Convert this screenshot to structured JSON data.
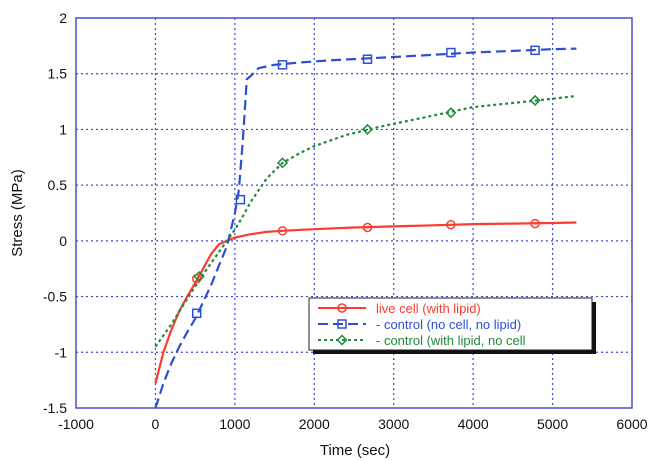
{
  "chart_data": {
    "type": "line",
    "title": "",
    "xlabel": "Time (sec)",
    "ylabel": "Stress (MPa)",
    "xlim": [
      -1000,
      6000
    ],
    "ylim": [
      -1.5,
      2
    ],
    "xticks": [
      -1000,
      0,
      1000,
      2000,
      3000,
      4000,
      5000,
      6000
    ],
    "yticks": [
      -1.5,
      -1,
      -0.5,
      0,
      0.5,
      1,
      1.5,
      2
    ],
    "xtick_labels": [
      "-1000",
      "0",
      "1000",
      "2000",
      "3000",
      "4000",
      "5000",
      "6000"
    ],
    "ytick_labels": [
      "-1.5",
      "-1",
      "-0.5",
      "0",
      "0.5",
      "1",
      "1.5",
      "2"
    ],
    "grid": true,
    "legend_position": "lower-right",
    "series": [
      {
        "name": "live cell (with lipid)",
        "color": "#ff3b30",
        "dash": "solid",
        "marker": "circle",
        "x": [
          0,
          100,
          200,
          300,
          400,
          500,
          600,
          700,
          800,
          900,
          1000,
          1200,
          1400,
          1600,
          2000,
          2500,
          3000,
          3500,
          4000,
          4500,
          5000,
          5300
        ],
        "y": [
          -1.28,
          -1.0,
          -0.8,
          -0.63,
          -0.5,
          -0.38,
          -0.25,
          -0.12,
          -0.03,
          0.0,
          0.03,
          0.06,
          0.08,
          0.09,
          0.105,
          0.12,
          0.13,
          0.14,
          0.15,
          0.155,
          0.16,
          0.165
        ],
        "marker_x": [
          520,
          1600,
          2670,
          3720,
          4780
        ],
        "marker_y": [
          -0.34,
          0.09,
          0.12,
          0.145,
          0.155
        ]
      },
      {
        "name": "control (no cell, no lipid)",
        "color": "#2b4fd6",
        "dash": "dashed",
        "marker": "square",
        "x": [
          0,
          100,
          200,
          300,
          400,
          500,
          600,
          700,
          800,
          900,
          1000,
          1050,
          1100,
          1150,
          1200,
          1300,
          1500,
          1800,
          2200,
          2600,
          3000,
          3500,
          4000,
          4500,
          5000,
          5300
        ],
        "y": [
          -1.5,
          -1.28,
          -1.1,
          -0.95,
          -0.82,
          -0.7,
          -0.55,
          -0.4,
          -0.22,
          -0.05,
          0.25,
          0.45,
          0.9,
          1.45,
          1.48,
          1.55,
          1.58,
          1.6,
          1.62,
          1.635,
          1.65,
          1.67,
          1.69,
          1.705,
          1.72,
          1.725
        ],
        "marker_x": [
          520,
          1070,
          1600,
          2670,
          3720,
          4780
        ],
        "marker_y": [
          -0.65,
          0.37,
          1.58,
          1.63,
          1.69,
          1.71
        ]
      },
      {
        "name": "control (with lipid, no cell",
        "color": "#1f8a3a",
        "dash": "dotted",
        "marker": "diamond",
        "x": [
          0,
          200,
          400,
          600,
          800,
          900,
          1000,
          1100,
          1200,
          1400,
          1600,
          1800,
          2000,
          2400,
          2800,
          3200,
          3600,
          4000,
          4400,
          4800,
          5300
        ],
        "y": [
          -0.95,
          -0.75,
          -0.52,
          -0.3,
          -0.1,
          0.0,
          0.1,
          0.22,
          0.35,
          0.56,
          0.7,
          0.78,
          0.85,
          0.95,
          1.02,
          1.08,
          1.14,
          1.2,
          1.23,
          1.26,
          1.3
        ],
        "marker_x": [
          550,
          1600,
          2670,
          3720,
          4780
        ],
        "marker_y": [
          -0.32,
          0.7,
          1.0,
          1.15,
          1.26
        ]
      }
    ],
    "legend_labels": [
      "live cell (with lipid)",
      "- control (no cell, no lipid)",
      "- control (with lipid, no cell"
    ]
  }
}
